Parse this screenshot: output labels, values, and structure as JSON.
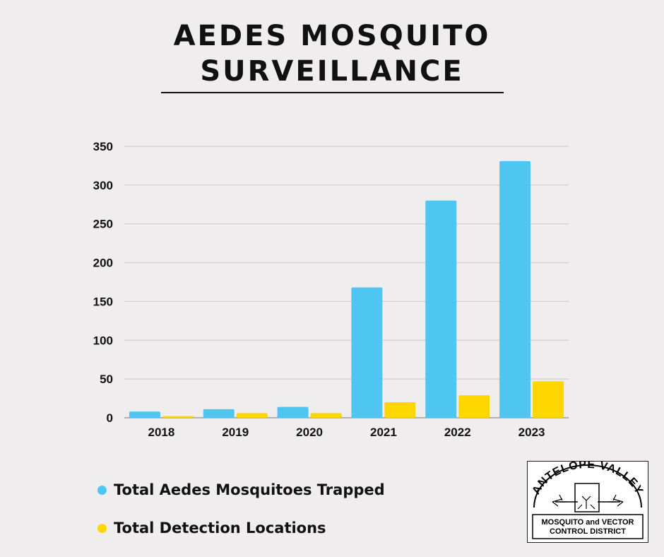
{
  "title_line1": "AEDES MOSQUITO",
  "title_line2": "SURVEILLANCE",
  "legend": [
    {
      "label": "Total Aedes Mosquitoes Trapped",
      "color": "#4fc6f2"
    },
    {
      "label": "Total Detection Locations",
      "color": "#ffd700"
    }
  ],
  "logo": {
    "arc_text": "ANTELOPE VALLEY",
    "line1": "MOSQUITO and VECTOR",
    "line2": "CONTROL DISTRICT"
  },
  "chart_data": {
    "type": "bar",
    "categories": [
      "2018",
      "2019",
      "2020",
      "2021",
      "2022",
      "2023"
    ],
    "series": [
      {
        "name": "Total Aedes Mosquitoes Trapped",
        "color": "#4fc6f2",
        "values": [
          8,
          11,
          14,
          168,
          280,
          331
        ]
      },
      {
        "name": "Total Detection Locations",
        "color": "#ffd700",
        "values": [
          2,
          6,
          6,
          20,
          29,
          47
        ]
      }
    ],
    "yticks": [
      0,
      50,
      100,
      150,
      200,
      250,
      300,
      350
    ],
    "ylim": [
      0,
      350
    ],
    "grid": true
  }
}
